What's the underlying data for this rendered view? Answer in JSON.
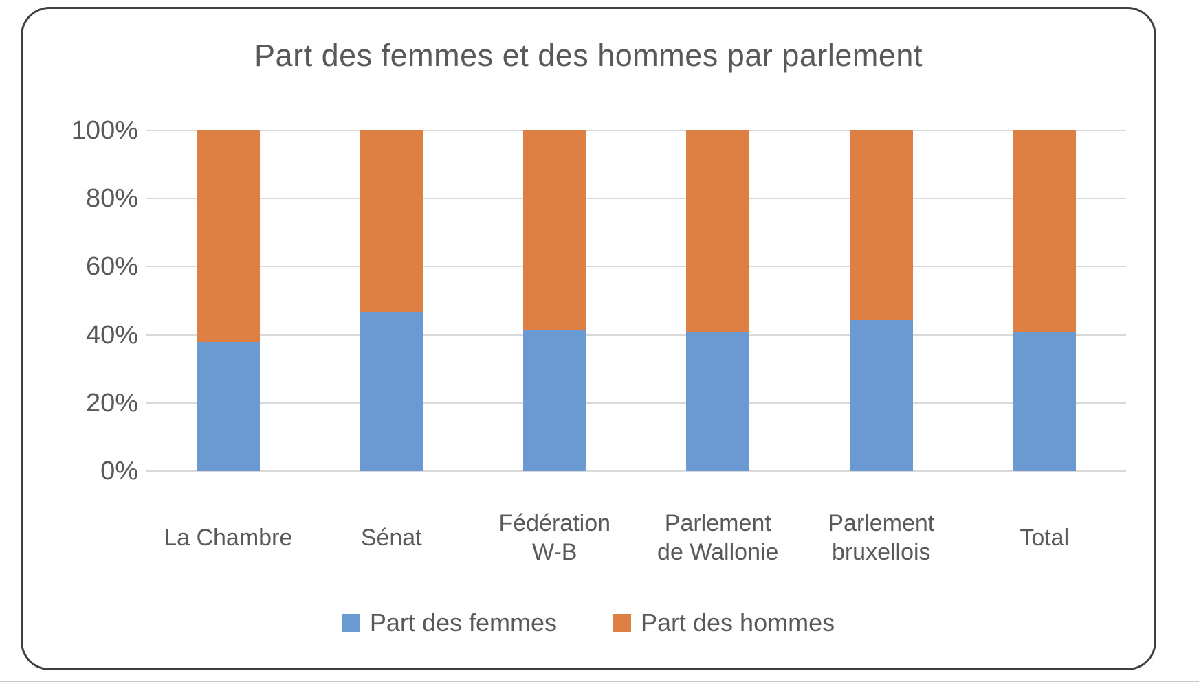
{
  "page": {
    "background": "#ffffff",
    "frame_border_color": "#3f3f3f",
    "text_color": "#595959"
  },
  "chart_data": {
    "type": "bar",
    "stacked": true,
    "percent_stacked": true,
    "title": "Part des femmes et des hommes par parlement",
    "categories": [
      "La Chambre",
      "Sénat",
      "Fédération W-B",
      "Parlement de Wallonie",
      "Parlement bruxellois",
      "Total"
    ],
    "category_label_lines": [
      [
        "La Chambre"
      ],
      [
        "Sénat"
      ],
      [
        "Fédération",
        "W-B"
      ],
      [
        "Parlement",
        "de Wallonie"
      ],
      [
        "Parlement",
        "bruxellois"
      ],
      [
        "Total"
      ]
    ],
    "series": [
      {
        "name": "Part des femmes",
        "color": "#6B9AD2",
        "values": [
          38,
          46.7,
          41.5,
          41,
          44.4,
          41
        ]
      },
      {
        "name": "Part des hommes",
        "color": "#DE8044",
        "values": [
          62,
          53.3,
          58.5,
          59,
          55.6,
          59
        ]
      }
    ],
    "y_axis": {
      "ticks": [
        "100%",
        "80%",
        "60%",
        "40%",
        "20%",
        "0%"
      ],
      "tick_values": [
        100,
        80,
        60,
        40,
        20,
        0
      ],
      "min": 0,
      "max": 100,
      "grid": true,
      "gridline_color": "#d9d9d9"
    },
    "x_axis": {
      "label": ""
    },
    "legend": {
      "position": "bottom",
      "entries": [
        "Part des femmes",
        "Part des hommes"
      ]
    }
  }
}
